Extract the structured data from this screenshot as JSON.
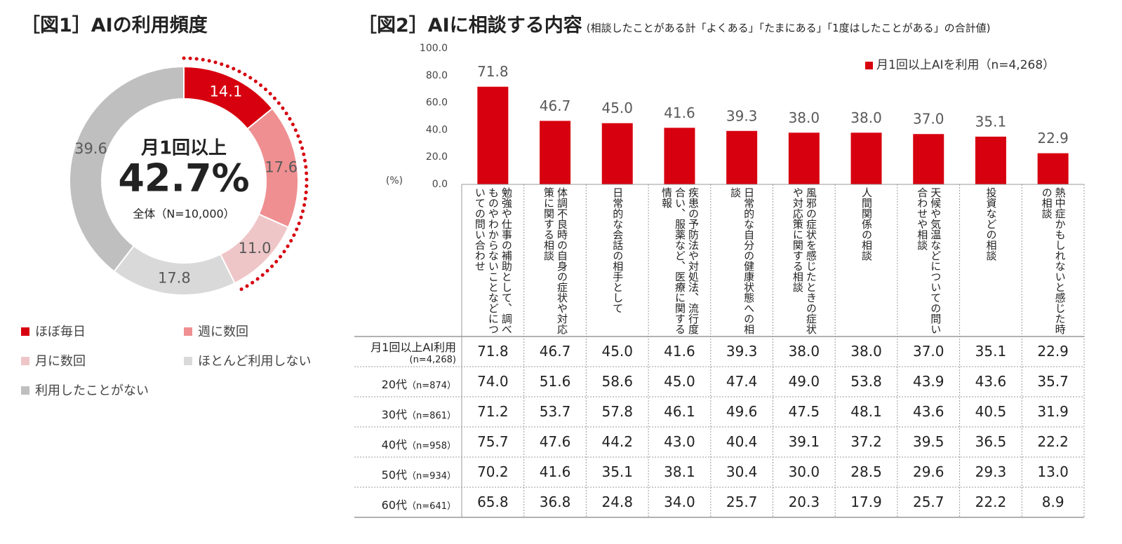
{
  "chart_data": [
    {
      "type": "pie",
      "title": "［図1］AIの利用頻度",
      "center_texts": [
        "月1回以上",
        "42.7%",
        "全体（N=10,000）"
      ],
      "categories": [
        "ほぼ毎日",
        "週に数回",
        "月に数回",
        "ほとんど利用しない",
        "利用したことがない"
      ],
      "values": [
        14.1,
        17.6,
        11.0,
        17.8,
        39.6
      ],
      "value_labels": [
        "14.1",
        "17.6",
        "11.0",
        "17.8",
        "39.6"
      ],
      "colors": [
        "#d7000f",
        "#ef8f91",
        "#efc6c8",
        "#d9d9d9",
        "#bfbfbf"
      ]
    },
    {
      "type": "bar",
      "title": "［図2］AIに相談する内容",
      "subtitle": "(相談したことがある計「よくある」「たまにある」「1度はしたことがある」の合計値)",
      "y_label": "(%)",
      "categories": [
        "勉強や仕事の補助として、調べものやわからないことなどについての問い合わせ",
        "体調不良時の自身の症状や対応策に関する相談",
        "日常的な会話の相手として",
        "疾患の予防法や対処法、流行度合い、服薬など、医療に関する情報",
        "日常的な自分の健康状態への相談",
        "風邪の症状を感じたときの症状や対応策に関する相談",
        "人間関係の相談",
        "天候や気温などについての問い合わせや相談",
        "投資などの相談",
        "熱中症かもしれないと感じた時の相談"
      ],
      "series": [
        {
          "name": "月1回以上AIを利用（n=4,268）",
          "color": "#d7000f",
          "values": [
            71.8,
            46.7,
            45.0,
            41.6,
            39.3,
            38.0,
            38.0,
            37.0,
            35.1,
            22.9
          ],
          "value_labels": [
            "71.8",
            "46.7",
            "45.0",
            "41.6",
            "39.3",
            "38.0",
            "38.0",
            "37.0",
            "35.1",
            "22.9"
          ]
        }
      ],
      "ylim": [
        0,
        100
      ],
      "yticks": [
        {
          "value": 0,
          "label": "0.0"
        },
        {
          "value": 20,
          "label": "20.0"
        },
        {
          "value": 40,
          "label": "40.0"
        },
        {
          "value": 60,
          "label": "60.0"
        },
        {
          "value": 80,
          "label": "80.0"
        },
        {
          "value": 100,
          "label": "100.0"
        }
      ],
      "legend": "top-right"
    }
  ],
  "table": {
    "rows": [
      {
        "label": "月1回以上AI利用",
        "sublabel": "(n=4,268)",
        "values": [
          "71.8",
          "46.7",
          "45.0",
          "41.6",
          "39.3",
          "38.0",
          "38.0",
          "37.0",
          "35.1",
          "22.9"
        ]
      },
      {
        "label": "20代",
        "sublabel": "（n=874）",
        "values": [
          "74.0",
          "51.6",
          "58.6",
          "45.0",
          "47.4",
          "49.0",
          "53.8",
          "43.9",
          "43.6",
          "35.7"
        ]
      },
      {
        "label": "30代",
        "sublabel": "（n=861）",
        "values": [
          "71.2",
          "53.7",
          "57.8",
          "46.1",
          "49.6",
          "47.5",
          "48.1",
          "43.6",
          "40.5",
          "31.9"
        ]
      },
      {
        "label": "40代",
        "sublabel": "（n=958）",
        "values": [
          "75.7",
          "47.6",
          "44.2",
          "43.0",
          "40.4",
          "39.1",
          "37.2",
          "39.5",
          "36.5",
          "22.2"
        ]
      },
      {
        "label": "50代",
        "sublabel": "（n=934）",
        "values": [
          "70.2",
          "41.6",
          "35.1",
          "38.1",
          "30.4",
          "30.0",
          "28.5",
          "29.6",
          "29.3",
          "13.0"
        ]
      },
      {
        "label": "60代",
        "sublabel": "（n=641）",
        "values": [
          "65.8",
          "36.8",
          "24.8",
          "34.0",
          "25.7",
          "20.3",
          "17.9",
          "25.7",
          "22.2",
          "8.9"
        ]
      }
    ]
  }
}
